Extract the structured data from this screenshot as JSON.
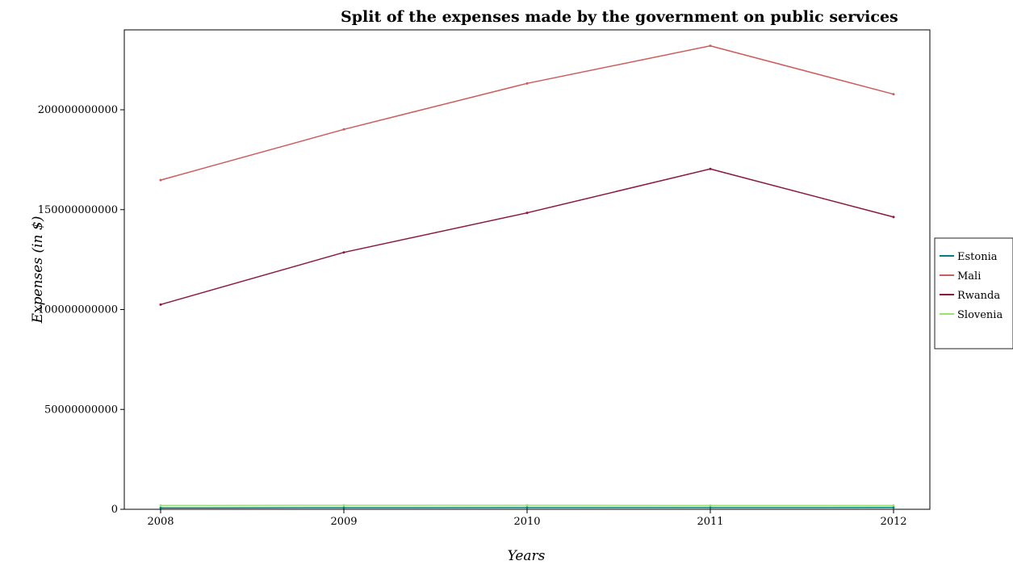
{
  "chart_data": {
    "type": "line",
    "title": "Split of the expenses made by the government on public services",
    "xlabel": "Years",
    "ylabel": "Expenses (in $)",
    "x": [
      "2008",
      "2009",
      "2010",
      "2011",
      "2012"
    ],
    "ylim": [
      0,
      240000000000
    ],
    "yticks": [
      0,
      50000000000,
      100000000000,
      150000000000,
      200000000000
    ],
    "ytick_labels": [
      "0",
      "50000000000",
      "100000000000",
      "150000000000",
      "200000000000"
    ],
    "grid": false,
    "legend_position": "right",
    "series": [
      {
        "name": "Estonia",
        "color": "#008080",
        "values": [
          700000000,
          800000000,
          850000000,
          850000000,
          900000000
        ]
      },
      {
        "name": "Mali",
        "color": "#cd5c5c",
        "values": [
          164800000000,
          190200000000,
          213200000000,
          232000000000,
          207800000000
        ]
      },
      {
        "name": "Rwanda",
        "color": "#8b1a3a",
        "values": [
          102500000000,
          128600000000,
          148400000000,
          170400000000,
          146300000000
        ]
      },
      {
        "name": "Slovenia",
        "color": "#99e36a",
        "values": [
          1900000000,
          2000000000,
          2000000000,
          1900000000,
          1900000000
        ]
      }
    ]
  }
}
